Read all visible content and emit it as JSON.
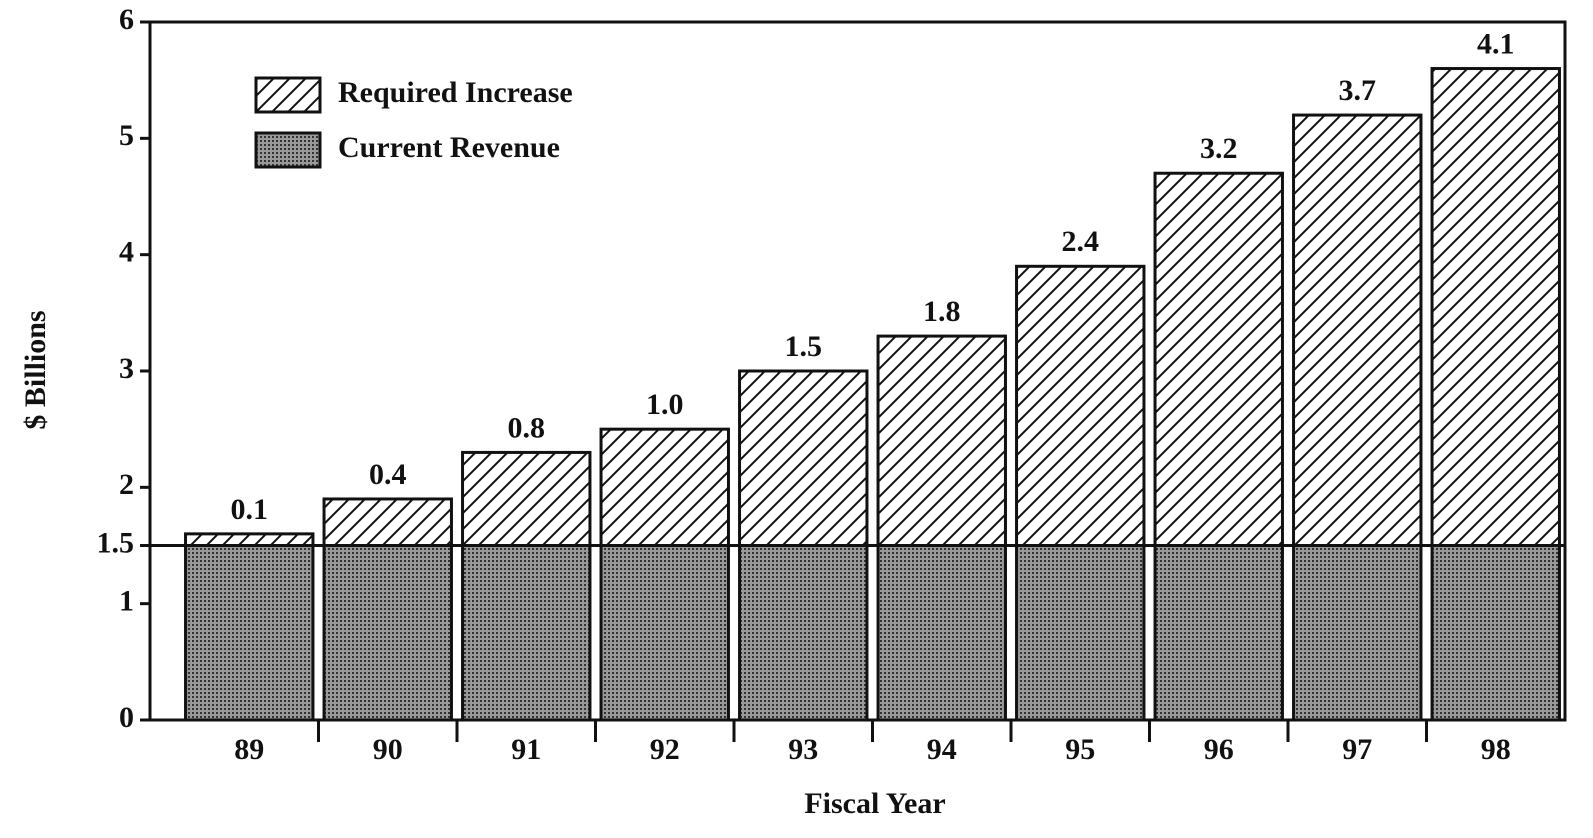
{
  "chart_data": {
    "type": "stacked_bar",
    "categories": [
      "89",
      "90",
      "91",
      "92",
      "93",
      "94",
      "95",
      "96",
      "97",
      "98"
    ],
    "series": [
      {
        "name": "Current Revenue",
        "color": "#555555",
        "pattern": "dots",
        "values": [
          1.5,
          1.5,
          1.5,
          1.5,
          1.5,
          1.5,
          1.5,
          1.5,
          1.5,
          1.5
        ]
      },
      {
        "name": "Required Increase",
        "color": "#111111",
        "pattern": "hatch",
        "values": [
          0.1,
          0.4,
          0.8,
          1.0,
          1.5,
          1.8,
          2.4,
          3.2,
          3.7,
          4.1
        ],
        "value_labels": [
          "0.1",
          "0.4",
          "0.8",
          "1.0",
          "1.5",
          "1.8",
          "2.4",
          "3.2",
          "3.7",
          "4.1"
        ]
      }
    ],
    "ylabel": "$ Billions",
    "xlabel": "Fiscal Year",
    "ylim": [
      0,
      6
    ],
    "yticks": [
      0,
      1,
      1.5,
      2,
      3,
      4,
      5,
      6
    ],
    "hline": 1.5,
    "legend": "upper left",
    "grid": false
  }
}
